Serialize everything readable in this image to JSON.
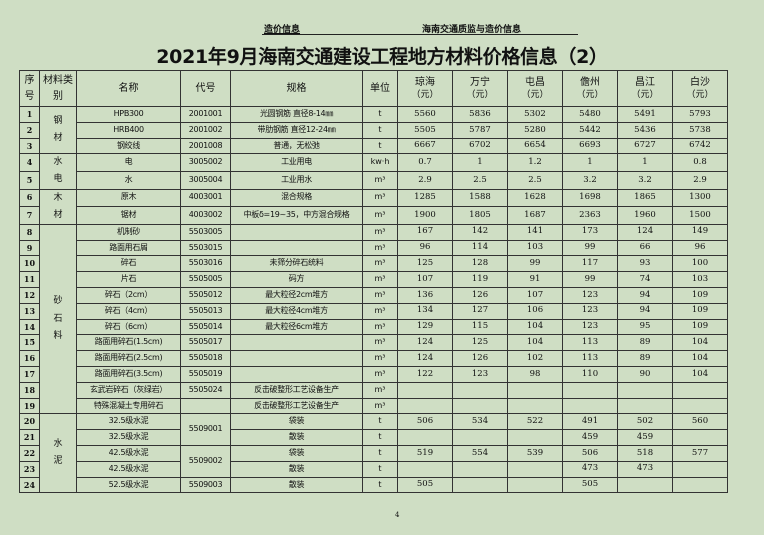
{
  "header": {
    "left": "造价信息",
    "right": "海南交通质监与造价信息"
  },
  "title": "2021年9月海南交通建设工程地方材料价格信息（2）",
  "columns": {
    "seq": "序号",
    "category": "材料类别",
    "name": "名称",
    "code": "代号",
    "spec": "规格",
    "unit": "单位",
    "regions": [
      {
        "name": "琼海",
        "unit": "（元）"
      },
      {
        "name": "万宁",
        "unit": "（元）"
      },
      {
        "name": "屯昌",
        "unit": "（元）"
      },
      {
        "name": "儋州",
        "unit": "（元）"
      },
      {
        "name": "昌江",
        "unit": "（元）"
      },
      {
        "name": "白沙",
        "unit": "（元）"
      }
    ]
  },
  "categories": [
    "钢材",
    "水电",
    "木材",
    "砂石料",
    "水泥"
  ],
  "rows": [
    {
      "seq": "1",
      "name": "HPB300",
      "code": "2001001",
      "spec": "光圆钢筋 直径8-14㎜",
      "unit": "t",
      "prices": [
        "5560",
        "5836",
        "5302",
        "5480",
        "5491",
        "5793"
      ]
    },
    {
      "seq": "2",
      "name": "HRB400",
      "code": "2001002",
      "spec": "带肋钢筋 直径12-24㎜",
      "unit": "t",
      "prices": [
        "5505",
        "5787",
        "5280",
        "5442",
        "5436",
        "5738"
      ]
    },
    {
      "seq": "3",
      "name": "钢绞线",
      "code": "2001008",
      "spec": "普通，无松弛",
      "unit": "t",
      "prices": [
        "6667",
        "6702",
        "6654",
        "6693",
        "6727",
        "6742"
      ]
    },
    {
      "seq": "4",
      "name": "电",
      "code": "3005002",
      "spec": "工业用电",
      "unit": "kw·h",
      "prices": [
        "0.7",
        "1",
        "1.2",
        "1",
        "1",
        "0.8"
      ]
    },
    {
      "seq": "5",
      "name": "水",
      "code": "3005004",
      "spec": "工业用水",
      "unit": "m³",
      "prices": [
        "2.9",
        "2.5",
        "2.5",
        "3.2",
        "3.2",
        "2.9"
      ]
    },
    {
      "seq": "6",
      "name": "原木",
      "code": "4003001",
      "spec": "混合规格",
      "unit": "m³",
      "prices": [
        "1285",
        "1588",
        "1628",
        "1698",
        "1865",
        "1300"
      ]
    },
    {
      "seq": "7",
      "name": "锯材",
      "code": "4003002",
      "spec": "中板δ=19~35，中方混合规格",
      "unit": "m³",
      "prices": [
        "1900",
        "1805",
        "1687",
        "2363",
        "1960",
        "1500"
      ]
    },
    {
      "seq": "8",
      "name": "机制砂",
      "code": "5503005",
      "spec": "",
      "unit": "m³",
      "prices": [
        "167",
        "142",
        "141",
        "173",
        "124",
        "149"
      ]
    },
    {
      "seq": "9",
      "name": "路面用石屑",
      "code": "5503015",
      "spec": "",
      "unit": "m³",
      "prices": [
        "96",
        "114",
        "103",
        "99",
        "66",
        "96"
      ]
    },
    {
      "seq": "10",
      "name": "碎石",
      "code": "5503016",
      "spec": "未筛分碎石统料",
      "unit": "m³",
      "prices": [
        "125",
        "128",
        "99",
        "117",
        "93",
        "100"
      ]
    },
    {
      "seq": "11",
      "name": "片石",
      "code": "5505005",
      "spec": "码方",
      "unit": "m³",
      "prices": [
        "107",
        "119",
        "91",
        "99",
        "74",
        "103"
      ]
    },
    {
      "seq": "12",
      "name": "碎石（2cm）",
      "code": "5505012",
      "spec": "最大粒径2cm堆方",
      "unit": "m³",
      "prices": [
        "136",
        "126",
        "107",
        "123",
        "94",
        "109"
      ]
    },
    {
      "seq": "13",
      "name": "碎石（4cm）",
      "code": "5505013",
      "spec": "最大粒径4cm堆方",
      "unit": "m³",
      "prices": [
        "134",
        "127",
        "106",
        "123",
        "94",
        "109"
      ]
    },
    {
      "seq": "14",
      "name": "碎石（6cm）",
      "code": "5505014",
      "spec": "最大粒径6cm堆方",
      "unit": "m³",
      "prices": [
        "129",
        "115",
        "104",
        "123",
        "95",
        "109"
      ]
    },
    {
      "seq": "15",
      "name": "路面用碎石(1.5cm)",
      "code": "5505017",
      "spec": "",
      "unit": "m³",
      "prices": [
        "124",
        "125",
        "104",
        "113",
        "89",
        "104"
      ]
    },
    {
      "seq": "16",
      "name": "路面用碎石(2.5cm)",
      "code": "5505018",
      "spec": "",
      "unit": "m³",
      "prices": [
        "124",
        "126",
        "102",
        "113",
        "89",
        "104"
      ]
    },
    {
      "seq": "17",
      "name": "路面用碎石(3.5cm)",
      "code": "5505019",
      "spec": "",
      "unit": "m³",
      "prices": [
        "122",
        "123",
        "98",
        "110",
        "90",
        "104"
      ]
    },
    {
      "seq": "18",
      "name": "玄武岩碎石（灰绿岩）",
      "code": "5505024",
      "spec": "反击破整形工艺设备生产",
      "unit": "m³",
      "prices": [
        "",
        "",
        "",
        "",
        "",
        ""
      ]
    },
    {
      "seq": "19",
      "name": "特殊混凝土专用碎石",
      "code": "",
      "spec": "反击破整形工艺设备生产",
      "unit": "m³",
      "prices": [
        "",
        "",
        "",
        "",
        "",
        ""
      ]
    },
    {
      "seq": "20",
      "name": "32.5级水泥",
      "code": "5509001",
      "spec": "袋装",
      "unit": "t",
      "prices": [
        "506",
        "534",
        "522",
        "491",
        "502",
        "560"
      ]
    },
    {
      "seq": "21",
      "name": "32.5级水泥",
      "code": "",
      "spec": "散装",
      "unit": "t",
      "prices": [
        "",
        "",
        "",
        "459",
        "459",
        ""
      ]
    },
    {
      "seq": "22",
      "name": "42.5级水泥",
      "code": "5509002",
      "spec": "袋装",
      "unit": "t",
      "prices": [
        "519",
        "554",
        "539",
        "506",
        "518",
        "577"
      ]
    },
    {
      "seq": "23",
      "name": "42.5级水泥",
      "code": "",
      "spec": "散装",
      "unit": "t",
      "prices": [
        "",
        "",
        "",
        "473",
        "473",
        ""
      ]
    },
    {
      "seq": "24",
      "name": "52.5级水泥",
      "code": "5509003",
      "spec": "散装",
      "unit": "t",
      "prices": [
        "505",
        "",
        "",
        "505",
        "",
        ""
      ]
    }
  ],
  "page_number": "4"
}
